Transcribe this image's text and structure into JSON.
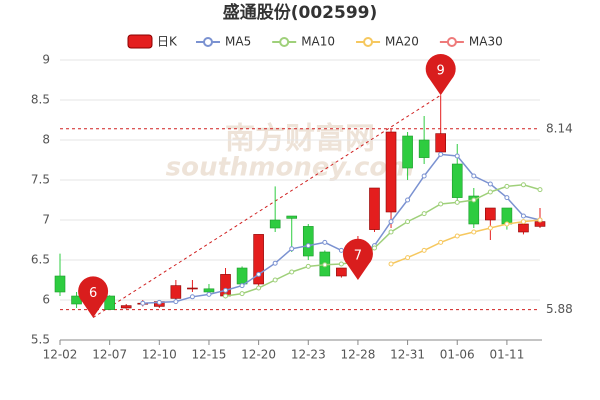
{
  "chart_data": {
    "type": "candlestick",
    "title": "盛通股份(002599)",
    "watermark": [
      "南方财富网",
      "southmoney.com"
    ],
    "categories": [
      "12-02",
      null,
      null,
      "12-07",
      null,
      null,
      "12-10",
      null,
      null,
      "12-15",
      null,
      null,
      "12-20",
      null,
      null,
      "12-23",
      null,
      null,
      "12-28",
      null,
      null,
      "12-31",
      null,
      null,
      "01-06",
      null,
      null,
      "01-11",
      null,
      null
    ],
    "candle_name": "日K",
    "up_color": "#e41e1e",
    "down_color": "#2ecc40",
    "open": [
      6.3,
      6.05,
      5.92,
      6.05,
      5.9,
      5.95,
      5.92,
      6.02,
      6.15,
      6.14,
      6.05,
      6.4,
      6.2,
      7.0,
      7.05,
      6.92,
      6.6,
      6.3,
      6.45,
      6.88,
      7.1,
      8.05,
      8.0,
      7.85,
      7.7,
      7.3,
      7.0,
      7.15,
      6.85,
      6.92
    ],
    "high": [
      6.58,
      6.1,
      5.95,
      6.06,
      5.95,
      6.0,
      6.0,
      6.25,
      6.25,
      6.2,
      6.4,
      6.42,
      6.82,
      7.42,
      7.05,
      6.95,
      6.62,
      6.4,
      6.8,
      7.4,
      8.14,
      8.1,
      8.3,
      8.56,
      7.95,
      7.4,
      7.15,
      7.15,
      6.97,
      7.15
    ],
    "low": [
      6.05,
      5.9,
      5.88,
      5.88,
      5.89,
      5.92,
      5.9,
      6.0,
      6.1,
      6.05,
      6.02,
      6.18,
      6.15,
      6.85,
      6.6,
      6.5,
      6.3,
      6.28,
      6.35,
      6.85,
      6.9,
      7.5,
      7.7,
      7.8,
      7.25,
      6.9,
      6.75,
      6.88,
      6.82,
      6.9
    ],
    "close": [
      6.1,
      5.95,
      5.9,
      5.88,
      5.93,
      5.96,
      5.98,
      6.18,
      6.15,
      6.1,
      6.32,
      6.2,
      6.82,
      6.9,
      7.02,
      6.55,
      6.3,
      6.4,
      6.72,
      7.4,
      8.1,
      7.65,
      7.78,
      8.08,
      7.28,
      6.95,
      7.15,
      6.95,
      6.95,
      6.98
    ],
    "series": [
      {
        "name": "MA5",
        "color": "#7b92d1",
        "values": [
          null,
          null,
          null,
          null,
          null,
          5.96,
          5.97,
          5.98,
          6.04,
          6.07,
          6.12,
          6.18,
          6.32,
          6.46,
          6.64,
          6.68,
          6.72,
          6.62,
          6.57,
          6.68,
          6.98,
          7.25,
          7.55,
          7.82,
          7.8,
          7.55,
          7.45,
          7.28,
          7.05,
          7.0
        ]
      },
      {
        "name": "MA10",
        "color": "#9fd07a",
        "values": [
          null,
          null,
          null,
          null,
          null,
          null,
          null,
          null,
          null,
          null,
          6.05,
          6.08,
          6.15,
          6.25,
          6.35,
          6.42,
          6.44,
          6.45,
          6.48,
          6.65,
          6.85,
          6.98,
          7.08,
          7.2,
          7.22,
          7.25,
          7.35,
          7.42,
          7.44,
          7.38
        ]
      },
      {
        "name": "MA20",
        "color": "#f6c85f",
        "values": [
          null,
          null,
          null,
          null,
          null,
          null,
          null,
          null,
          null,
          null,
          null,
          null,
          null,
          null,
          null,
          null,
          null,
          null,
          null,
          null,
          6.45,
          6.53,
          6.62,
          6.72,
          6.8,
          6.85,
          6.9,
          6.95,
          6.98,
          7.0
        ]
      },
      {
        "name": "MA30",
        "color": "#ee7a7a",
        "values": [
          null,
          null,
          null,
          null,
          null,
          null,
          null,
          null,
          null,
          null,
          null,
          null,
          null,
          null,
          null,
          null,
          null,
          null,
          null,
          null,
          null,
          null,
          null,
          null,
          null,
          null,
          null,
          null,
          null,
          null
        ]
      }
    ],
    "ylim": [
      5.5,
      9
    ],
    "yticks": [
      5.5,
      6,
      6.5,
      7,
      7.5,
      8,
      8.5,
      9
    ],
    "grid": true,
    "hlines": [
      8.14,
      5.88
    ],
    "pins": [
      {
        "label": "6",
        "at": 2
      },
      {
        "label": "7",
        "at": 18
      },
      {
        "label": "9",
        "at": 23
      }
    ]
  }
}
